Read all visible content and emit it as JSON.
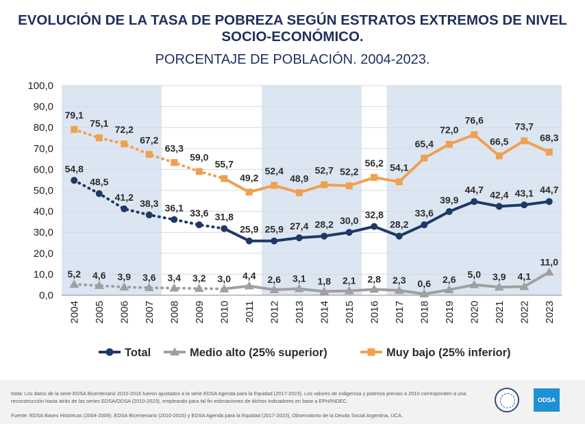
{
  "header": {
    "title": "EVOLUCIÓN DE LA TASA DE POBREZA SEGÚN ESTRATOS EXTREMOS DE NIVEL SOCIO-ECONÓMICO.",
    "subtitle": "PORCENTAJE DE POBLACIÓN. 2004-2023."
  },
  "footer": {
    "note": "Nota: Los datos de la serie EDSA Bicentenario 2010-2016 fueron ajustados a la serie EDSA Agenda para la Equidad (2017-2023). Los valores de indigencia y pobreza previos a 2010 corresponden a una reconstrucción hacia atrás de las series EDSA/ODSA (2010-2023), empleando para tal fin estimaciones de dichos indicadores en base a EPH/INDEC.",
    "source": "Fuente: EDSA Bases Históricas (2004-2009), EDSA Bicentenario (2010-2016) y EDSA Agenda para la Equidad (2017-2023), Observatorio de la Deuda Social Argentina, UCA.",
    "logo_text": "ODSA"
  },
  "colors": {
    "title": "#1f2f5c",
    "total": "#1f3864",
    "medio_alto": "#a0a0a0",
    "muy_bajo": "#f0a050",
    "band": "#dce6f2",
    "grid": "#d9d9d9"
  },
  "chart_data": {
    "type": "line",
    "categories": [
      "2004",
      "2005",
      "2006",
      "2007",
      "2008",
      "2009",
      "2010",
      "2011",
      "2012",
      "2013",
      "2014",
      "2015",
      "2016",
      "2017",
      "2018",
      "2019",
      "2020",
      "2021",
      "2022",
      "2023"
    ],
    "ylim": [
      0,
      100
    ],
    "yticks": [
      "0,0",
      "10,0",
      "20,0",
      "30,0",
      "40,0",
      "50,0",
      "60,0",
      "70,0",
      "80,0",
      "90,0",
      "100,0"
    ],
    "legend_position": "bottom",
    "dotted_segment": "2004-2010",
    "shaded_periods": [
      "2004-2007",
      "2012-2015",
      "2017-2019",
      "2020-2023"
    ],
    "series": [
      {
        "name": "Total",
        "color": "#1f3864",
        "marker": "circle",
        "values": [
          54.8,
          48.5,
          41.2,
          38.3,
          36.1,
          33.6,
          31.8,
          25.9,
          25.9,
          27.4,
          28.2,
          30.0,
          32.8,
          28.2,
          33.6,
          39.9,
          44.7,
          42.4,
          43.1,
          44.7
        ],
        "labels": [
          "54,8",
          "48,5",
          "41,2",
          "38,3",
          "36,1",
          "33,6",
          "31,8",
          "25,9",
          "25,9",
          "27,4",
          "28,2",
          "30,0",
          "32,8",
          "28,2",
          "33,6",
          "39,9",
          "44,7",
          "42,4",
          "43,1",
          "44,7"
        ]
      },
      {
        "name": "Medio alto (25% superior)",
        "color": "#a0a0a0",
        "marker": "triangle",
        "values": [
          5.2,
          4.6,
          3.9,
          3.6,
          3.4,
          3.2,
          3.0,
          4.4,
          2.6,
          3.1,
          1.8,
          2.1,
          2.8,
          2.3,
          0.6,
          2.6,
          5.0,
          3.9,
          4.1,
          11.0
        ],
        "labels": [
          "5,2",
          "4,6",
          "3,9",
          "3,6",
          "3,4",
          "3,2",
          "3,0",
          "4,4",
          "2,6",
          "3,1",
          "1,8",
          "2,1",
          "2,8",
          "2,3",
          "0,6",
          "2,6",
          "5,0",
          "3,9",
          "4,1",
          "11,0"
        ]
      },
      {
        "name": "Muy bajo (25% inferior)",
        "color": "#f0a050",
        "marker": "square",
        "values": [
          79.1,
          75.1,
          72.2,
          67.2,
          63.3,
          59.0,
          55.7,
          49.2,
          52.4,
          48.9,
          52.7,
          52.2,
          56.2,
          54.1,
          65.4,
          72.0,
          76.6,
          66.5,
          73.7,
          68.3
        ],
        "labels": [
          "79,1",
          "75,1",
          "72,2",
          "67,2",
          "63,3",
          "59,0",
          "55,7",
          "49,2",
          "52,4",
          "48,9",
          "52,7",
          "52,2",
          "56,2",
          "54,1",
          "65,4",
          "72,0",
          "76,6",
          "66,5",
          "73,7",
          "68,3"
        ]
      }
    ]
  }
}
